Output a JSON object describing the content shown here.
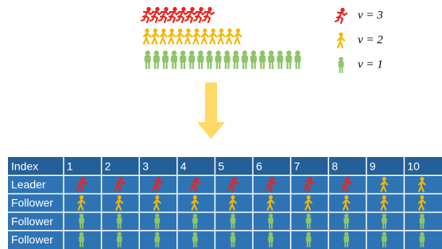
{
  "legend": [
    "v = 3",
    "v = 2",
    "v = 1"
  ],
  "table": {
    "header": [
      "Index",
      "1",
      "2",
      "3",
      "4",
      "5",
      "6",
      "7",
      "8",
      "9",
      "10"
    ],
    "rows": [
      "Leader",
      "Follower",
      "Follower",
      "Follower"
    ]
  }
}
